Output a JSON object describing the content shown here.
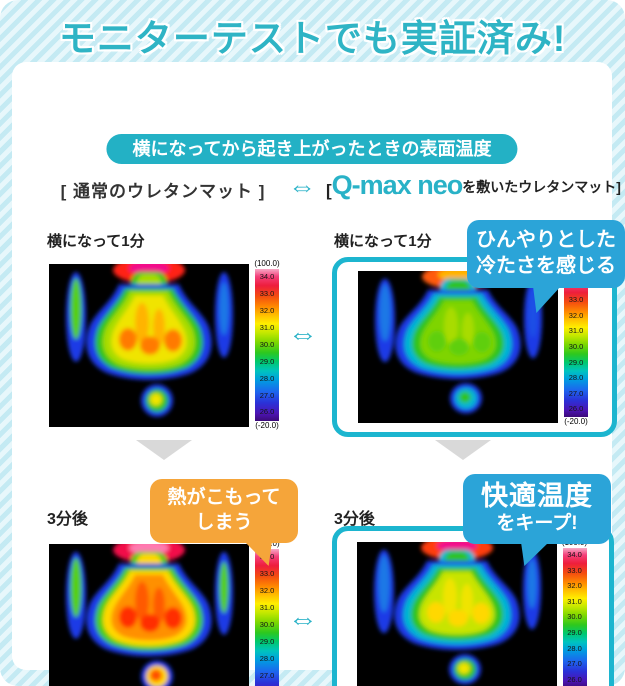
{
  "title": "モニターテストでも実証済み!",
  "subtitle_pill": "横になってから起き上がったときの表面温度",
  "comparison_header": {
    "left_label": "[ 通常のウレタンマット ]",
    "arrow": "⇔",
    "right_bracket_open": "[",
    "right_brand": "Q-max neo",
    "right_rest": "を敷いたウレタンマット]"
  },
  "panels": {
    "normal_1min_label": "横になって1分",
    "qmax_1min_label": "横になって1分",
    "normal_3min_label": "3分後",
    "qmax_3min_label": "3分後"
  },
  "callouts": {
    "cool_line1": "ひんやりとした",
    "cool_line2": "冷たさを感じる",
    "heat_line1": "熱がこもって",
    "heat_line2": "しまう",
    "keep_line1": "快適温度",
    "keep_line2": "をキープ!"
  },
  "arrows": {
    "compare": "⇔"
  },
  "thermal_scale": {
    "top": "(100.0)",
    "ticks": [
      "34.0",
      "33.0",
      "32.0",
      "31.0",
      "30.0",
      "29.0",
      "28.0",
      "27.0",
      "26.0"
    ],
    "bottom": "(-20.0)"
  },
  "colors": {
    "accent_teal": "#29b2c7",
    "frame_teal": "#1cb5cf",
    "bubble_blue": "#2ba4d8",
    "bubble_orange": "#f5a53a",
    "stripe_light": "#e7f7fb",
    "stripe_dark": "#c4eaf3"
  }
}
